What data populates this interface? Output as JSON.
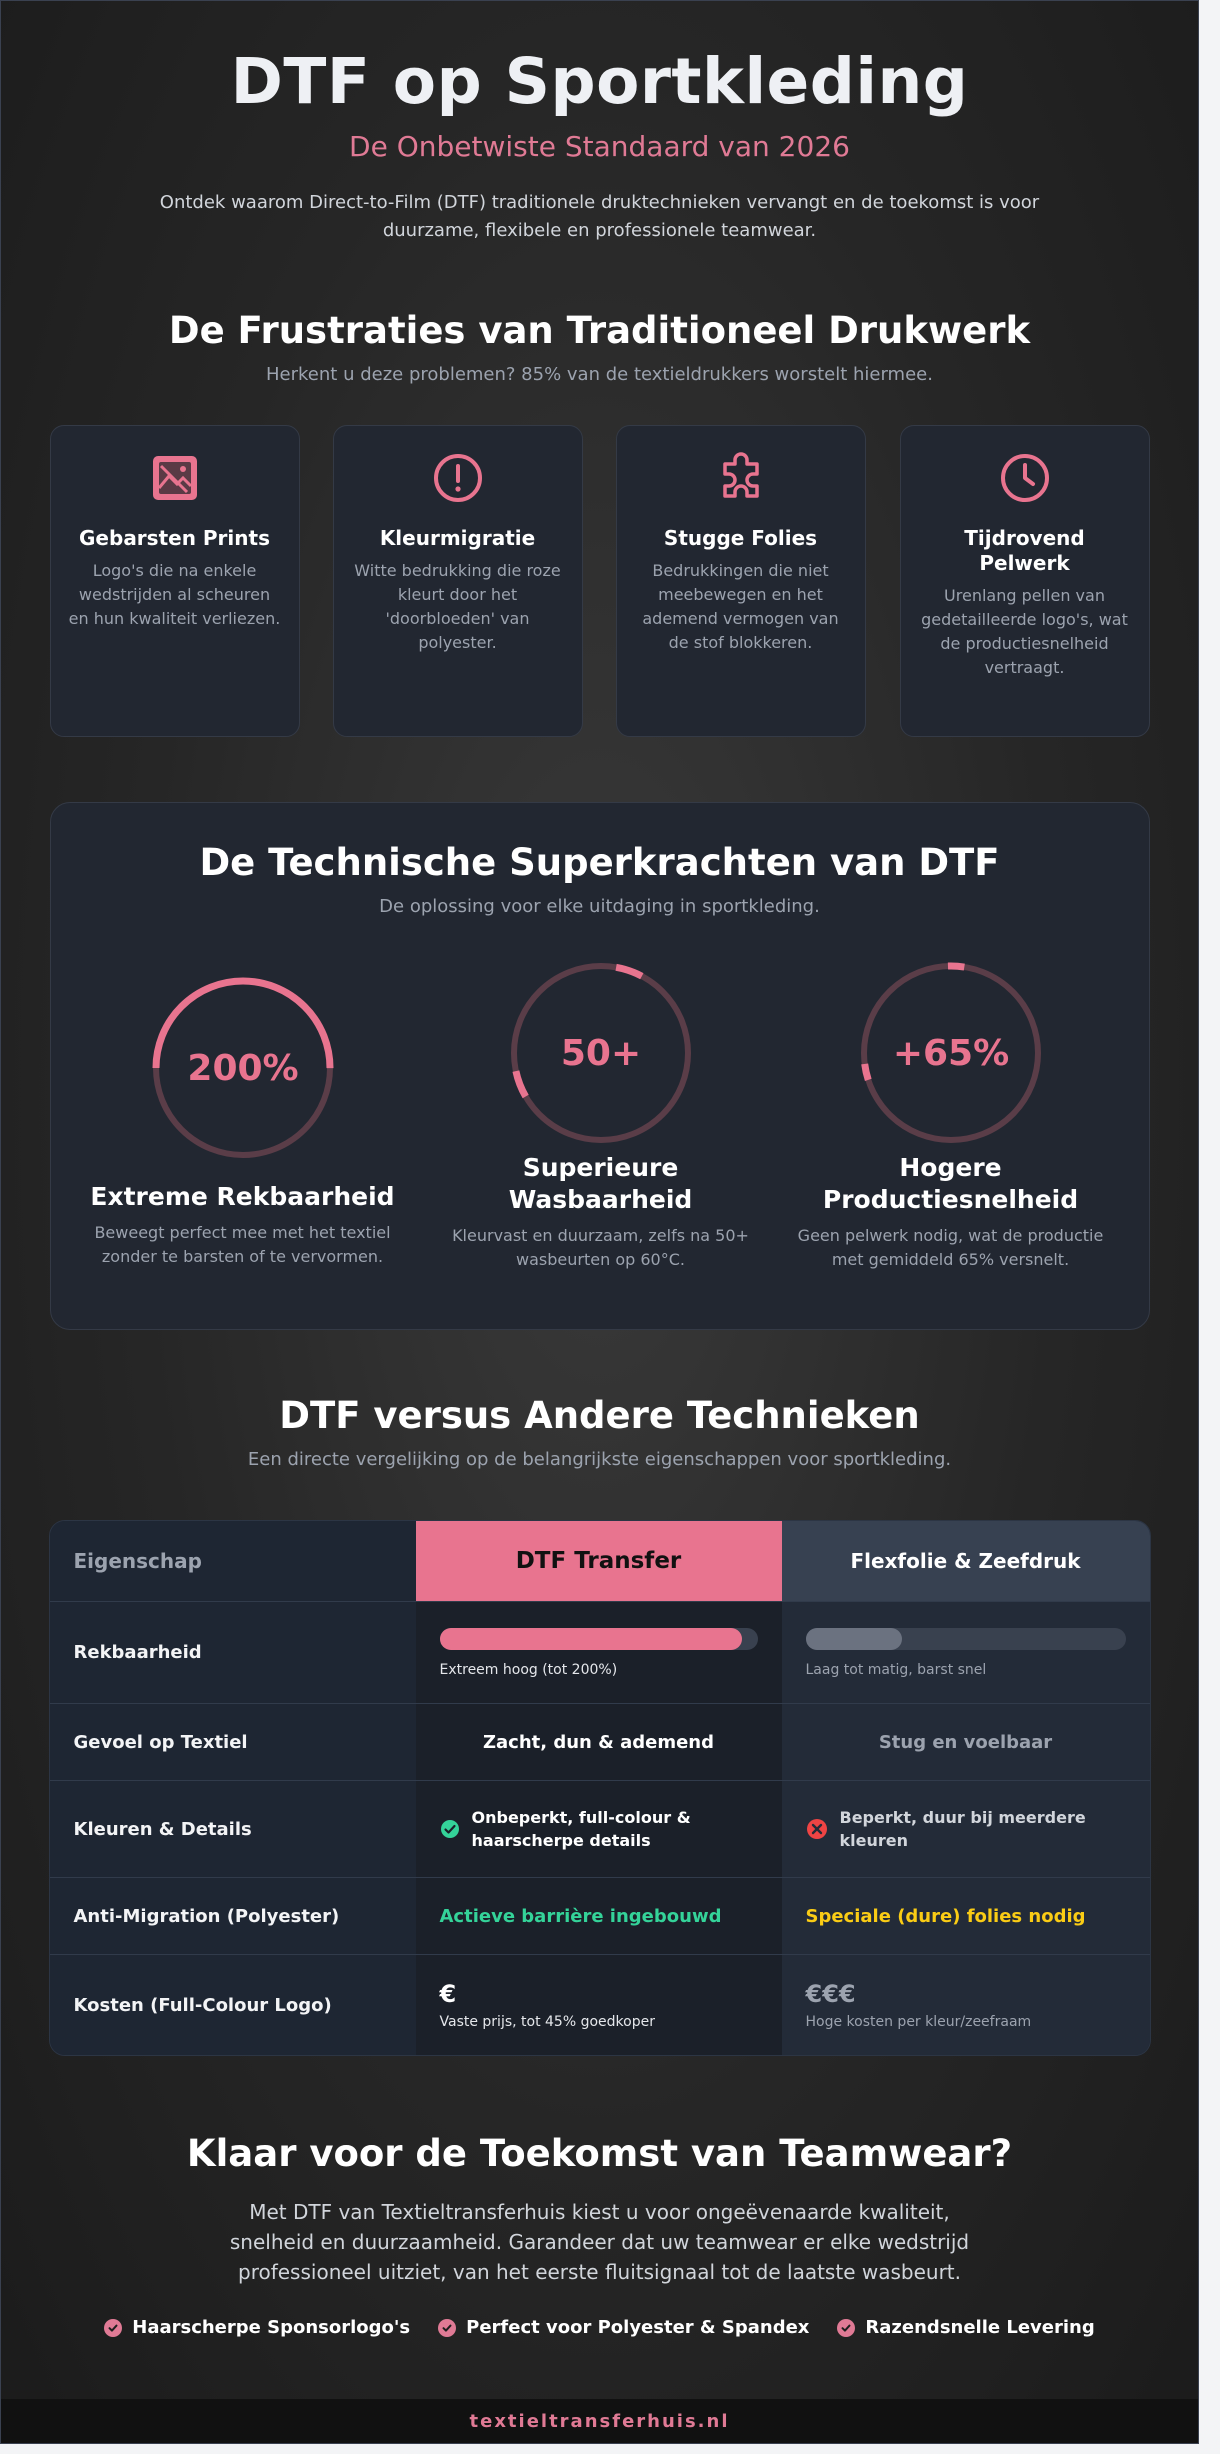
{
  "hero": {
    "title": "DTF op Sportkleding",
    "subtitle": "De Onbetwiste Standaard van 2026",
    "intro": "Ontdek waarom Direct-to-Film (DTF) traditionele druktechnieken vervangt en de toekomst is voor duurzame, flexibele en professionele teamwear."
  },
  "frustrations": {
    "title": "De Frustraties van Traditioneel Drukwerk",
    "lead": "Herkent u deze problemen? 85% van de textieldrukkers worstelt hiermee.",
    "cards": [
      {
        "icon": "broken-image-icon",
        "title": "Gebarsten Prints",
        "text": "Logo's die na enkele wedstrijden al scheuren en hun kwaliteit verliezen."
      },
      {
        "icon": "alert-circle-icon",
        "title": "Kleurmigratie",
        "text": "Witte bedrukking die roze kleurt door het 'doorbloeden' van polyester."
      },
      {
        "icon": "puzzle-icon",
        "title": "Stugge Folies",
        "text": "Bedrukkingen die niet meebewegen en het ademend vermogen van de stof blokkeren."
      },
      {
        "icon": "clock-icon",
        "title": "Tijdrovend Pelwerk",
        "text": "Urenlang pellen van gedetailleerde logo's, wat de productiesnelheid vertraagt."
      }
    ]
  },
  "superpowers": {
    "title": "De Technische Superkrachten van DTF",
    "lead": "De oplossing voor elke uitdaging in sportkleding.",
    "items": [
      {
        "value": "200%",
        "fill_fraction": 0.5,
        "title": "Extreme Rekbaarheid",
        "text": "Beweegt perfect mee met het textiel zonder te barsten of te vervormen."
      },
      {
        "value": "50+",
        "fill_fraction": 0.05,
        "title": "Superieure Wasbaarheid",
        "text": "Kleurvast en duurzaam, zelfs na 50+ wasbeurten op 60°C."
      },
      {
        "value": "+65%",
        "fill_fraction": 0.03,
        "title": "Hogere Productiesnelheid",
        "text": "Geen pelwerk nodig, wat de productie met gemiddeld 65% versnelt."
      }
    ]
  },
  "comparison": {
    "title": "DTF versus Andere Technieken",
    "lead": "Een directe vergelijking op de belangrijkste eigenschappen voor sportkleding.",
    "headers": [
      "Eigenschap",
      "DTF Transfer",
      "Flexfolie & Zeefdruk"
    ],
    "rows": {
      "stretch": {
        "label": "Rekbaarheid",
        "dtf_fill": 0.95,
        "dtf_text": "Extreem hoog (tot 200%)",
        "other_fill": 0.3,
        "other_text": "Laag tot matig, barst snel"
      },
      "feel": {
        "label": "Gevoel op Textiel",
        "dtf_text": "Zacht, dun & ademend",
        "other_text": "Stug en voelbaar"
      },
      "colors": {
        "label": "Kleuren & Details",
        "dtf_text": "Onbeperkt, full-colour & haarscherpe details",
        "other_text": "Beperkt, duur bij meerdere kleuren"
      },
      "migration": {
        "label": "Anti-Migration (Polyester)",
        "dtf_text": "Actieve barrière ingebouwd",
        "other_text": "Speciale (dure) folies nodig"
      },
      "cost": {
        "label": "Kosten (Full-Colour Logo)",
        "dtf_price": "€",
        "dtf_text": "Vaste prijs, tot 45% goedkoper",
        "other_price": "€€€",
        "other_text": "Hoge kosten per kleur/zeefraam"
      }
    }
  },
  "cta": {
    "title": "Klaar voor de Toekomst van Teamwear?",
    "text": "Met DTF van Textieltransferhuis kiest u voor ongeëvenaarde kwaliteit, snelheid en duurzaamheid. Garandeer dat uw teamwear er elke wedstrijd professioneel uitziet, van het eerste fluitsignaal tot de laatste wasbeurt.",
    "points": [
      "Haarscherpe Sponsorlogo's",
      "Perfect voor Polyester & Spandex",
      "Razendsnelle Levering"
    ]
  },
  "footer": {
    "domain": "textieltransferhuis.nl"
  },
  "colors": {
    "accent": "#e8748f",
    "success": "#34d399",
    "danger": "#ef4444",
    "warning": "#facc15",
    "muted_bar": "#6b7280"
  }
}
